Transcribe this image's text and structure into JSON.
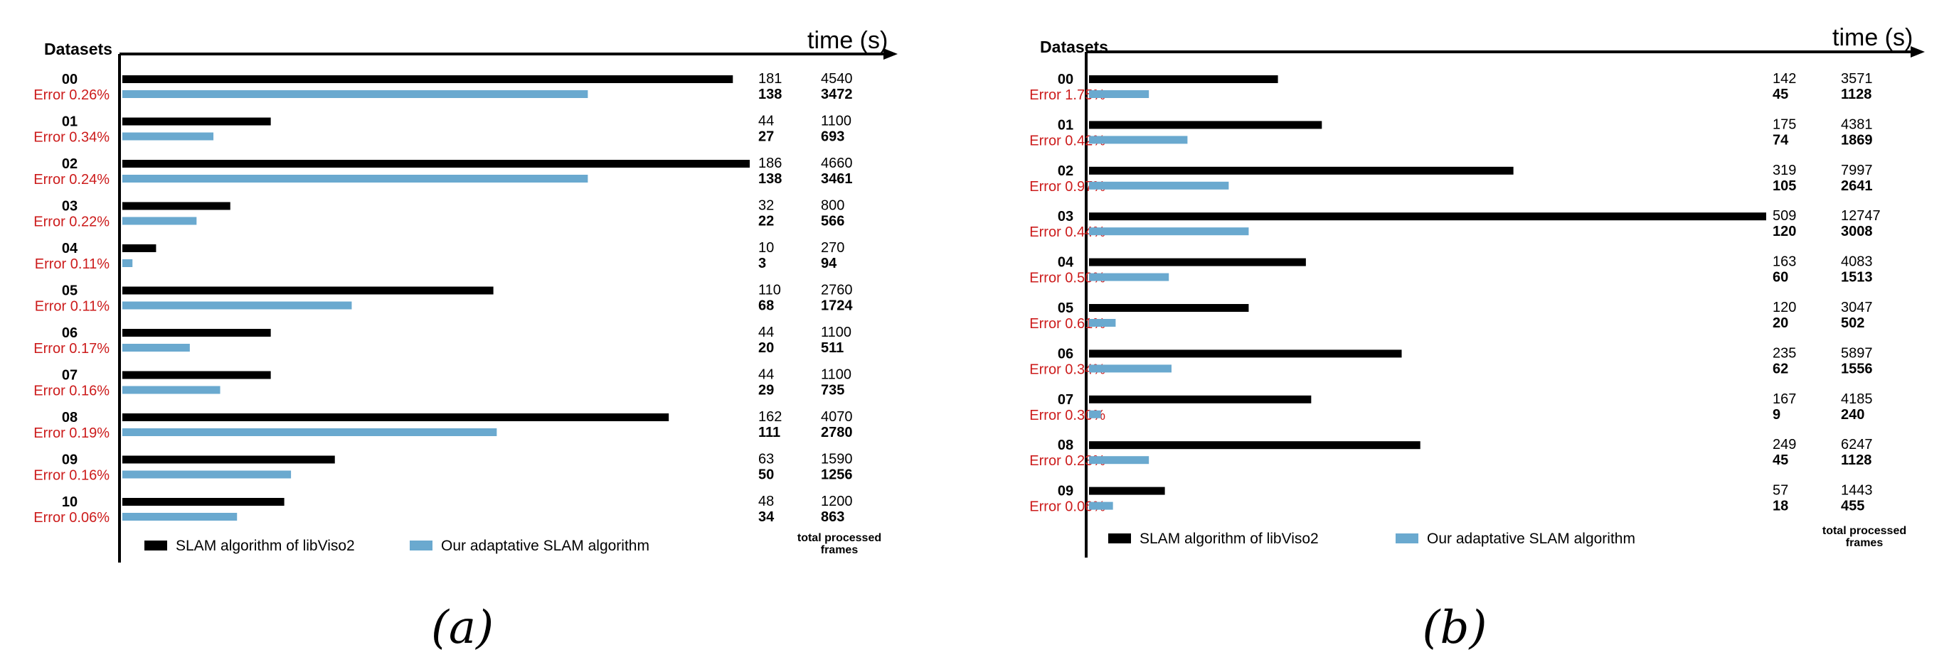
{
  "chart_data": [
    {
      "type": "bar",
      "panel_label": "(a)",
      "axis_title": "time (s)",
      "category_title": "Datasets",
      "categories": [
        "00",
        "01",
        "02",
        "03",
        "04",
        "05",
        "06",
        "07",
        "08",
        "09",
        "10"
      ],
      "errors": [
        "Error 0.26%",
        "Error 0.34%",
        "Error 0.24%",
        "Error 0.22%",
        "Error 0.11%",
        "Error 0.11%",
        "Error 0.17%",
        "Error 0.16%",
        "Error 0.19%",
        "Error 0.16%",
        "Error 0.06%"
      ],
      "frames_column_title": [
        "total processed",
        "frames"
      ],
      "series": [
        {
          "name": "SLAM algorithm of libViso2",
          "color": "#000000",
          "values": [
            181,
            44,
            186,
            32,
            10,
            110,
            44,
            44,
            162,
            63,
            48
          ],
          "frames": [
            4540,
            1100,
            4660,
            800,
            270,
            2760,
            1100,
            1100,
            4070,
            1590,
            1200
          ]
        },
        {
          "name": "Our adaptative SLAM algorithm",
          "color": "#6aa9cf",
          "values": [
            138,
            27,
            138,
            22,
            3,
            68,
            20,
            29,
            111,
            50,
            34
          ],
          "frames": [
            3472,
            693,
            3461,
            566,
            94,
            1724,
            511,
            735,
            2780,
            1256,
            863
          ]
        }
      ]
    },
    {
      "type": "bar",
      "panel_label": "(b)",
      "axis_title": "time (s)",
      "category_title": "Datasets",
      "categories": [
        "00",
        "01",
        "02",
        "03",
        "04",
        "05",
        "06",
        "07",
        "08",
        "09"
      ],
      "errors": [
        "Error 1.75%",
        "Error 0.42%",
        "Error 0.97%",
        "Error 0.44%",
        "Error 0.50%",
        "Error 0.61%",
        "Error 0.34%",
        "Error 0.30%",
        "Error 0.23%",
        "Error 0.06%"
      ],
      "frames_column_title": [
        "total processed",
        "frames"
      ],
      "series": [
        {
          "name": "SLAM algorithm of libViso2",
          "color": "#000000",
          "values": [
            142,
            175,
            319,
            509,
            163,
            120,
            235,
            167,
            249,
            57
          ],
          "frames": [
            3571,
            4381,
            7997,
            12747,
            4083,
            3047,
            5897,
            4185,
            6247,
            1443
          ]
        },
        {
          "name": "Our adaptative SLAM algorithm",
          "color": "#6aa9cf",
          "values": [
            45,
            74,
            105,
            120,
            60,
            20,
            62,
            9,
            45,
            18
          ],
          "frames": [
            1128,
            1869,
            2641,
            3008,
            1513,
            502,
            1556,
            240,
            1128,
            455
          ]
        }
      ]
    }
  ]
}
